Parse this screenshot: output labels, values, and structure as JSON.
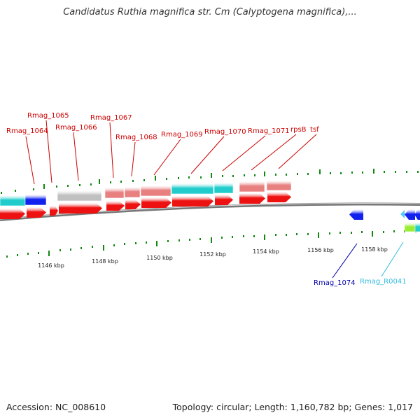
{
  "title": "Candidatus Ruthia magnifica str. Cm (Calyptogena magnifica),...",
  "footer": {
    "accession": "Accession: NC_008610",
    "summary": "Topology: circular; Length: 1,160,782 bp; Genes: 1,017"
  },
  "colors": {
    "label_red": "#cc0000",
    "label_blue": "#0000aa",
    "label_cyan": "#33bbdd",
    "cds_red": "#ee1111",
    "cds_pink": "#e88080",
    "cds_cyan": "#22cccc",
    "cds_blue": "#1122ee",
    "cds_gray": "#c0c0c0",
    "cds_green": "#99ee33",
    "tick_green": "#118811",
    "backbone": "#8a8a8a"
  },
  "scale": {
    "tick_labels": [
      "1146 kbp",
      "1148 kbp",
      "1150 kbp",
      "1152 kbp",
      "1154 kbp",
      "1156 kbp",
      "1158 kbp"
    ]
  },
  "gene_labels": {
    "forward": [
      "Rmag_1064",
      "Rmag_1065",
      "Rmag_1066",
      "Rmag_1067",
      "Rmag_1068",
      "Rmag_1069",
      "Rmag_1070",
      "Rmag_1071",
      "rpsB",
      "tsf"
    ],
    "reverse": [
      "Rmag_1074",
      "Rmag_R0041"
    ]
  }
}
